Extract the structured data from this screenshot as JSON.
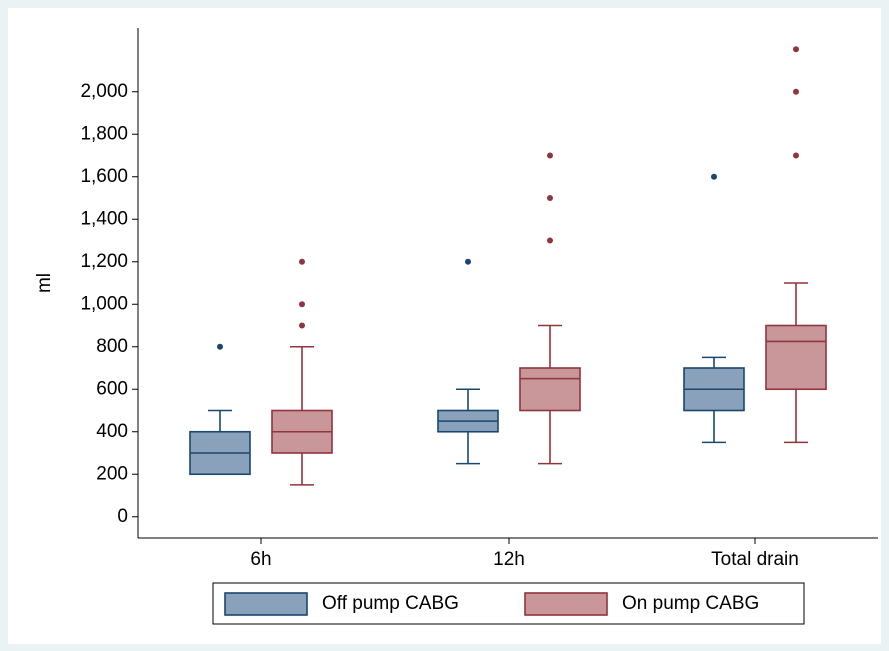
{
  "chart_data": {
    "type": "box",
    "y_label": "ml",
    "categories": [
      "6h",
      "12h",
      "Total drain"
    ],
    "ylim": [
      -100,
      2300
    ],
    "yticks": [
      0,
      200,
      400,
      600,
      800,
      {
        "value": 1000,
        "label": "1,000"
      },
      {
        "value": 1200,
        "label": "1,200"
      },
      {
        "value": 1400,
        "label": "1,400"
      },
      {
        "value": 1600,
        "label": "1,600"
      },
      {
        "value": 1800,
        "label": "1,800"
      },
      {
        "value": 2000,
        "label": "2,000"
      }
    ],
    "legend": "bottom",
    "series": [
      {
        "name": "Off pump CABG",
        "color": "#1a476f",
        "fill": "#8aa1bb",
        "min": [
          200,
          250,
          350
        ],
        "q1": [
          200,
          400,
          500
        ],
        "median": [
          300,
          450,
          600
        ],
        "q3": [
          400,
          500,
          700
        ],
        "max": [
          500,
          600,
          750
        ],
        "outliers": [
          [
            800
          ],
          [
            1200
          ],
          [
            1600
          ]
        ]
      },
      {
        "name": "On pump CABG",
        "color": "#90353b",
        "fill": "#c9979a",
        "min": [
          150,
          250,
          350
        ],
        "q1": [
          300,
          500,
          600
        ],
        "median": [
          400,
          650,
          825
        ],
        "q3": [
          500,
          700,
          900
        ],
        "max": [
          800,
          900,
          1100
        ],
        "outliers": [
          [
            900,
            1000,
            1200
          ],
          [
            1300,
            1500,
            1700
          ],
          [
            1700,
            2000,
            2200
          ]
        ]
      }
    ]
  }
}
